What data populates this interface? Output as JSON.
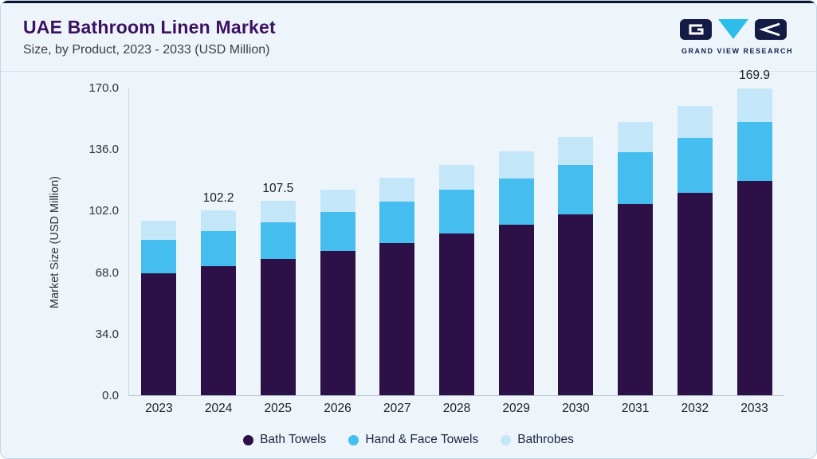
{
  "header": {
    "title": "UAE Bathroom Linen Market",
    "subtitle": "Size, by Product, 2023 - 2033 (USD Million)",
    "logo_text": "GRAND VIEW RESEARCH"
  },
  "colors": {
    "title": "#3c1161",
    "background": "#edf5fb",
    "logo_navy": "#141b44",
    "logo_cyan": "#2cbde9",
    "axis_text": "#333333"
  },
  "chart_data": {
    "type": "bar",
    "stacked": true,
    "title": "UAE Bathroom Linen Market Size, by Product, 2023 - 2033 (USD Million)",
    "ylabel": "Market Size (USD Million)",
    "xlabel": "",
    "ylim": [
      0,
      170
    ],
    "grid": false,
    "legend_position": "bottom",
    "categories": [
      "2023",
      "2024",
      "2025",
      "2026",
      "2027",
      "2028",
      "2029",
      "2030",
      "2031",
      "2032",
      "2033"
    ],
    "series": [
      {
        "name": "Bath Towels",
        "color": "#2d1047",
        "values": [
          67.6,
          71.5,
          75.3,
          79.7,
          84.3,
          89.3,
          94.4,
          100.0,
          105.8,
          112.0,
          118.9
        ]
      },
      {
        "name": "Hand & Face Towels",
        "color": "#45bdee",
        "values": [
          18.4,
          19.4,
          20.4,
          21.6,
          22.9,
          24.2,
          25.6,
          27.1,
          28.7,
          30.4,
          32.3
        ]
      },
      {
        "name": "Bathrobes",
        "color": "#c3e7f9",
        "values": [
          10.6,
          11.3,
          11.8,
          12.5,
          13.2,
          14.0,
          14.9,
          15.7,
          16.7,
          17.6,
          18.7
        ]
      }
    ],
    "totals": [
      96.6,
      102.2,
      107.5,
      113.8,
      120.4,
      127.5,
      134.9,
      142.8,
      151.2,
      160.0,
      169.9
    ],
    "yticks": [
      {
        "value": 0,
        "label": "0.0"
      },
      {
        "value": 34,
        "label": "34.0"
      },
      {
        "value": 68,
        "label": "68.0"
      },
      {
        "value": 102,
        "label": "102.0"
      },
      {
        "value": 136,
        "label": "136.0"
      },
      {
        "value": 170,
        "label": "170.0"
      }
    ],
    "annotations": [
      {
        "category": "2024",
        "label": "102.2"
      },
      {
        "category": "2025",
        "label": "107.5"
      },
      {
        "category": "2033",
        "label": "169.9"
      }
    ]
  }
}
